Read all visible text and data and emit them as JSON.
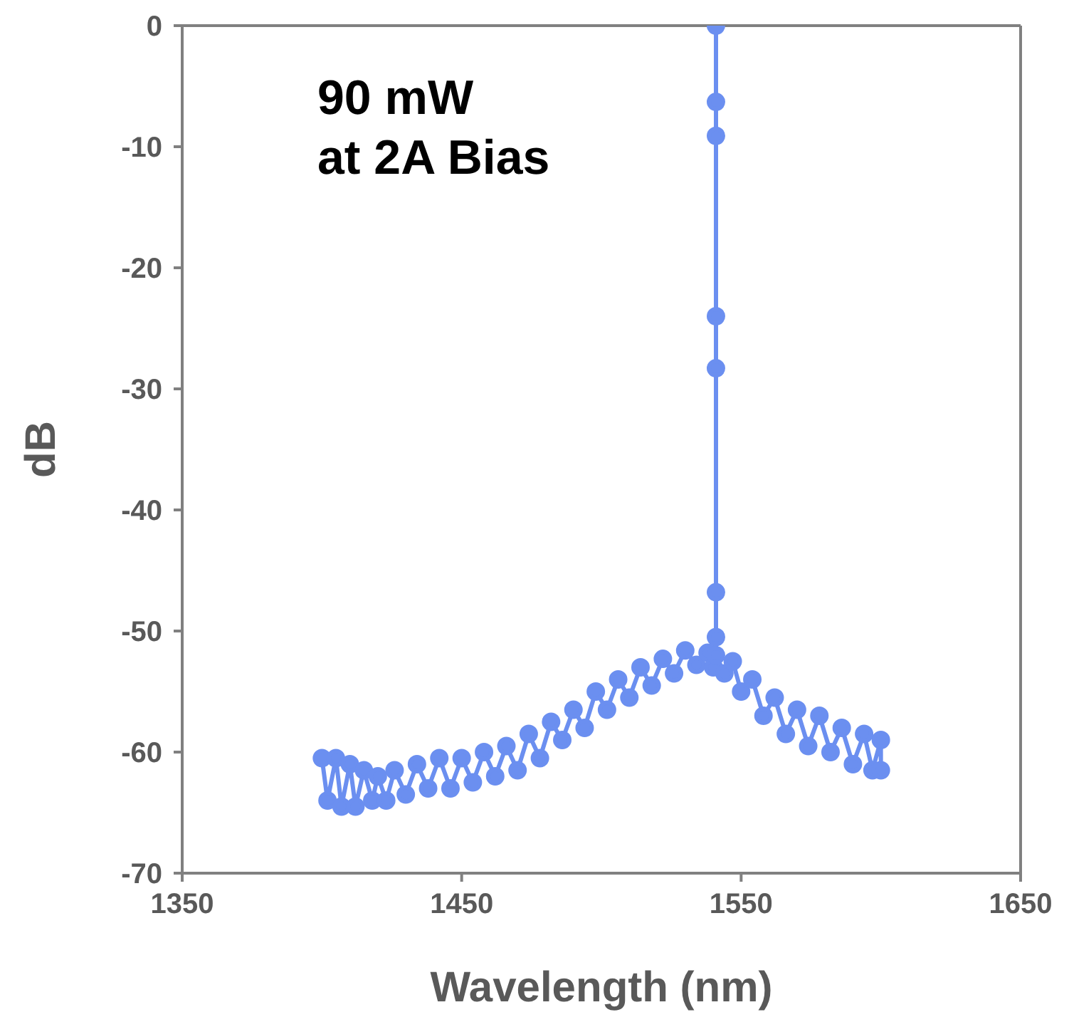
{
  "chart_data": {
    "type": "line",
    "xlabel": "Wavelength (nm)",
    "ylabel": "dB",
    "annotations": [
      "90 mW\nat 2A Bias"
    ],
    "xlim": [
      1350,
      1650
    ],
    "xticks": [
      1350,
      1450,
      1550,
      1650
    ],
    "ylim": [
      -70,
      0
    ],
    "yticks": [
      -70,
      -60,
      -50,
      -40,
      -30,
      -20,
      -10,
      0
    ],
    "grid": false,
    "legend": false,
    "marker": "circle",
    "line_style": "solid",
    "series": [
      {
        "color": "#6b8ff0",
        "x": [
          1400,
          1402,
          1405,
          1407,
          1410,
          1412,
          1415,
          1418,
          1420,
          1423,
          1426,
          1430,
          1434,
          1438,
          1442,
          1446,
          1450,
          1454,
          1458,
          1462,
          1466,
          1470,
          1474,
          1478,
          1482,
          1486,
          1490,
          1494,
          1498,
          1502,
          1506,
          1510,
          1514,
          1518,
          1522,
          1526,
          1530,
          1534,
          1538,
          1540,
          1541,
          1541,
          1541,
          1541,
          1541,
          1541,
          1541,
          1541,
          1544,
          1547,
          1550,
          1554,
          1558,
          1562,
          1566,
          1570,
          1574,
          1578,
          1582,
          1586,
          1590,
          1594,
          1597,
          1600,
          1600
        ],
        "values": [
          -60.5,
          -64,
          -60.5,
          -64.5,
          -61,
          -64.5,
          -61.5,
          -64,
          -62,
          -64,
          -61.5,
          -63.5,
          -61,
          -63,
          -60.5,
          -63,
          -60.5,
          -62.5,
          -60,
          -62,
          -59.5,
          -61.5,
          -58.5,
          -60.5,
          -57.5,
          -59,
          -56.5,
          -58,
          -55,
          -56.5,
          -54,
          -55.5,
          -53,
          -54.5,
          -52.3,
          -53.5,
          -51.6,
          -52.8,
          -51.8,
          -53,
          -50.5,
          -46.8,
          -28.3,
          -9.1,
          0,
          -6.3,
          -24,
          -52,
          -53.5,
          -52.5,
          -55,
          -54,
          -57,
          -55.5,
          -58.5,
          -56.5,
          -59.5,
          -57,
          -60,
          -58,
          -61,
          -58.5,
          -61.5,
          -59,
          -61.5
        ]
      }
    ]
  }
}
